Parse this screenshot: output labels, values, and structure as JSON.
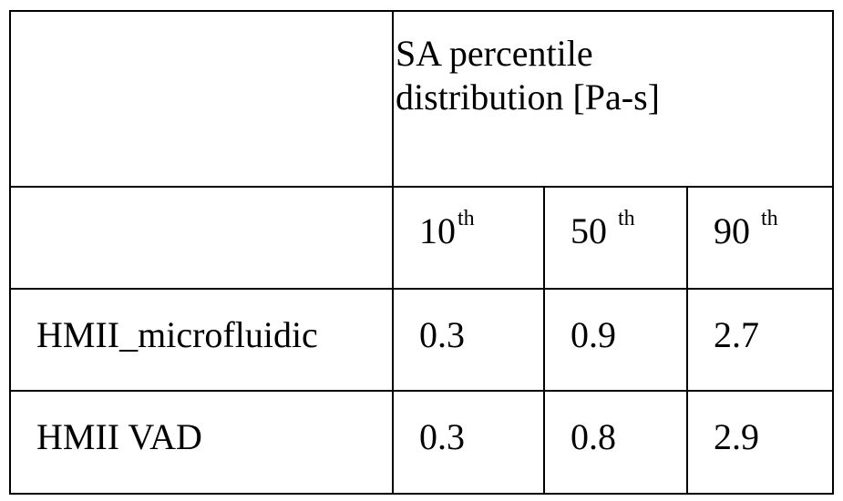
{
  "table": {
    "group_header": "SA percentile distribution [Pa-s]",
    "percentiles": [
      {
        "number": "10",
        "suffix": "th"
      },
      {
        "number": "50 ",
        "suffix": "th"
      },
      {
        "number": "90 ",
        "suffix": "th"
      }
    ],
    "rows": [
      {
        "label": "HMII_microfluidic",
        "values": [
          "0.3",
          "0.9",
          "2.7"
        ]
      },
      {
        "label": "HMII VAD",
        "values": [
          "0.3",
          "0.8",
          "2.9"
        ]
      }
    ]
  }
}
